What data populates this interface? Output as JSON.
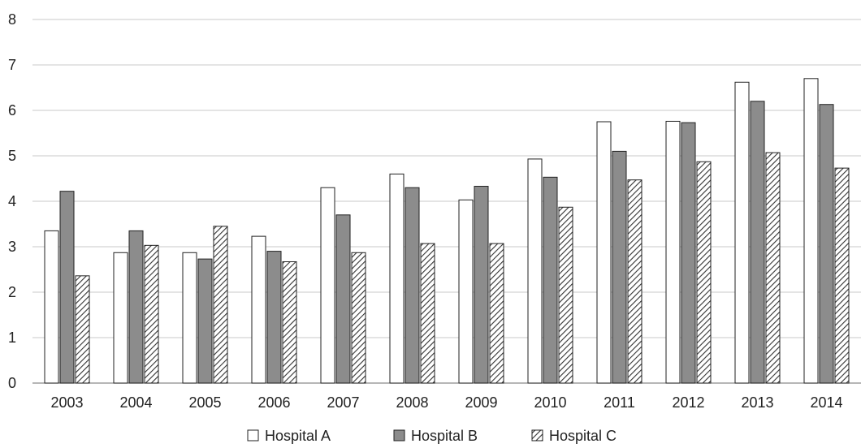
{
  "chart_data": {
    "type": "bar",
    "title": "",
    "xlabel": "",
    "ylabel": "",
    "ylim": [
      0,
      8
    ],
    "yticks": [
      0,
      1,
      2,
      3,
      4,
      5,
      6,
      7,
      8
    ],
    "grid": "horizontal",
    "legend_position": "bottom",
    "categories": [
      "2003",
      "2004",
      "2005",
      "2006",
      "2007",
      "2008",
      "2009",
      "2010",
      "2011",
      "2012",
      "2013",
      "2014"
    ],
    "series": [
      {
        "name": "Hospital A",
        "fill": "#ffffff",
        "pattern": "none",
        "values": [
          3.35,
          2.87,
          2.87,
          3.23,
          4.3,
          4.6,
          4.03,
          4.93,
          5.75,
          5.76,
          6.62,
          6.7
        ]
      },
      {
        "name": "Hospital B",
        "fill": "#8c8c8c",
        "pattern": "none",
        "values": [
          4.22,
          3.35,
          2.73,
          2.9,
          3.7,
          4.3,
          4.33,
          4.53,
          5.1,
          5.73,
          6.2,
          6.13
        ]
      },
      {
        "name": "Hospital C",
        "fill": "#ffffff",
        "pattern": "diagonal-hatch",
        "values": [
          2.36,
          3.03,
          3.45,
          2.67,
          2.87,
          3.07,
          3.07,
          3.87,
          4.47,
          4.87,
          5.07,
          4.73
        ]
      }
    ]
  }
}
